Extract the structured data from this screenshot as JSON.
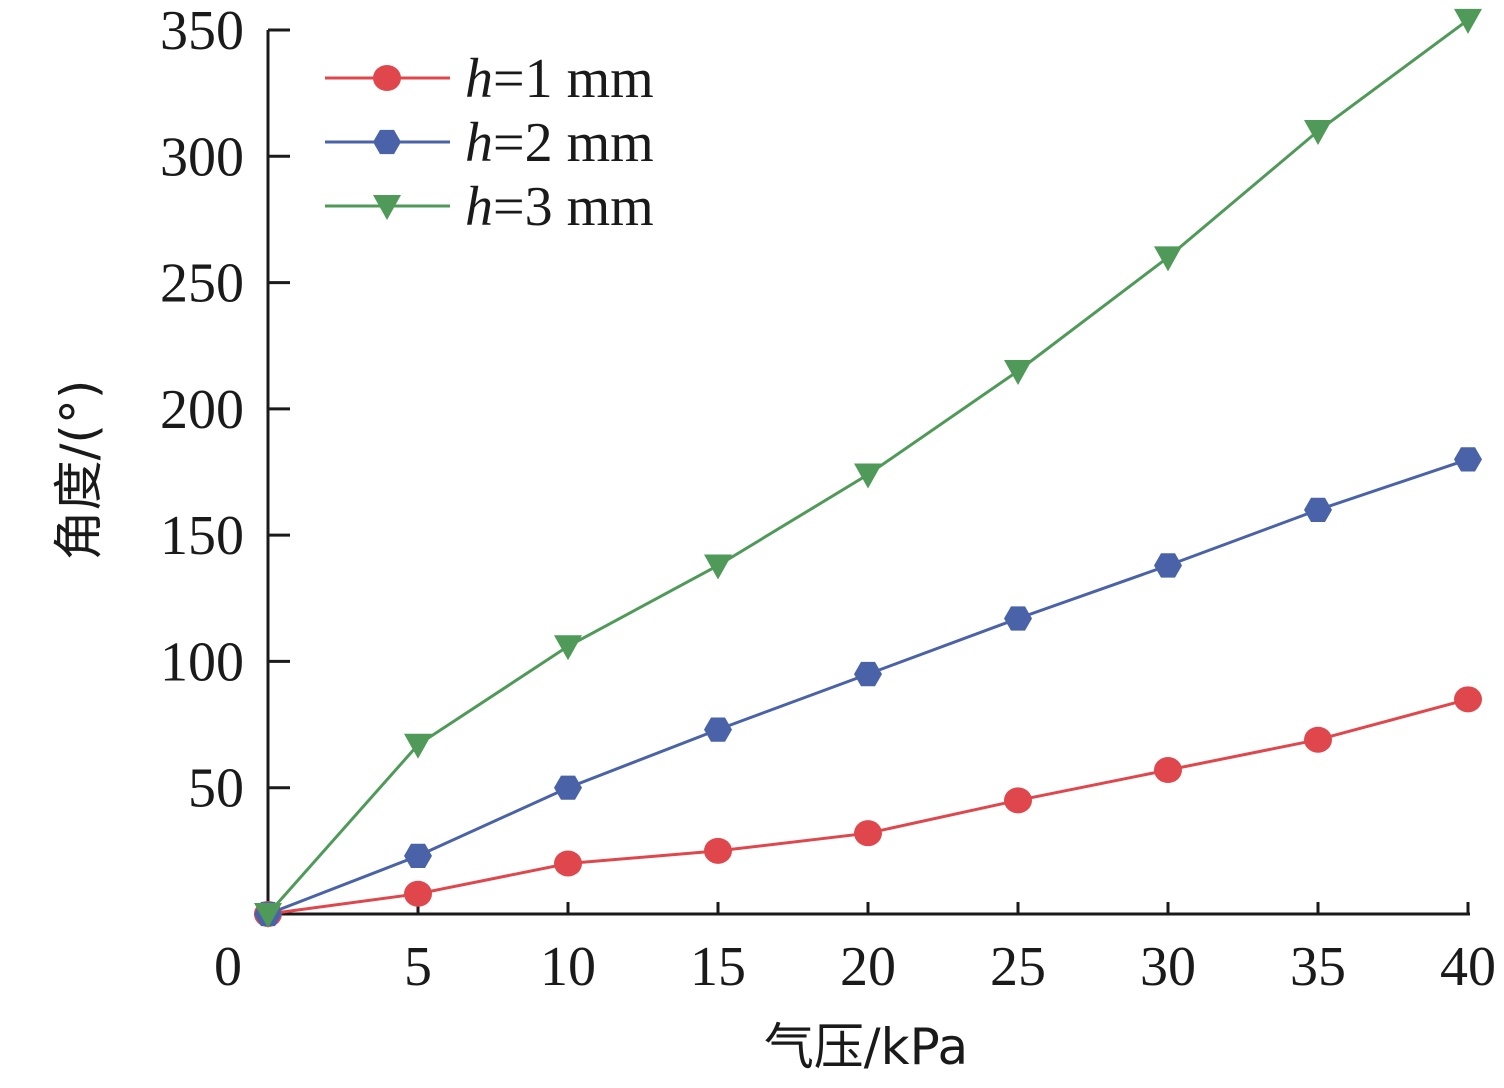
{
  "chart_data": {
    "type": "line",
    "xlabel": "气压/kPa",
    "ylabel": "角度/(°)",
    "xlim": [
      0,
      40
    ],
    "ylim": [
      0,
      350
    ],
    "x_ticks": [
      5,
      10,
      15,
      20,
      25,
      30,
      35,
      40
    ],
    "y_ticks": [
      50,
      100,
      150,
      200,
      250,
      300,
      350
    ],
    "origin_label": "0",
    "x": [
      0,
      5,
      10,
      15,
      20,
      25,
      30,
      35,
      40
    ],
    "grid": false,
    "legend_position": "top-left",
    "series": [
      {
        "name_var": "h",
        "name_rest": "=1 mm",
        "color": "#e0474c",
        "marker": "circle",
        "values": [
          0,
          8,
          20,
          25,
          32,
          45,
          57,
          69,
          85
        ]
      },
      {
        "name_var": "h",
        "name_rest": "=2 mm",
        "color": "#4a63a8",
        "marker": "hexagon",
        "values": [
          0,
          23,
          50,
          73,
          95,
          117,
          138,
          160,
          180
        ]
      },
      {
        "name_var": "h",
        "name_rest": "=3 mm",
        "color": "#4f9a58",
        "marker": "triangle-down",
        "values": [
          0,
          67,
          106,
          138,
          174,
          215,
          260,
          310,
          354
        ]
      }
    ]
  }
}
